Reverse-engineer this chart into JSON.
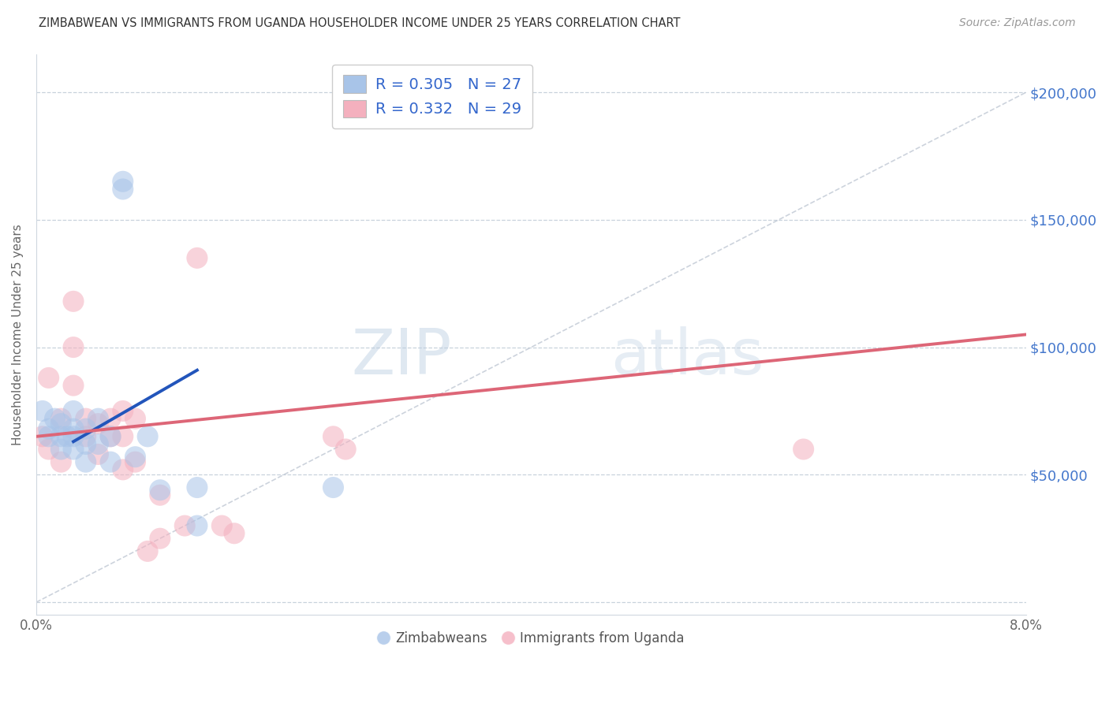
{
  "title": "ZIMBABWEAN VS IMMIGRANTS FROM UGANDA HOUSEHOLDER INCOME UNDER 25 YEARS CORRELATION CHART",
  "source": "Source: ZipAtlas.com",
  "ylabel": "Householder Income Under 25 years",
  "xlim": [
    0.0,
    0.08
  ],
  "ylim": [
    -5000,
    215000
  ],
  "xticks": [
    0.0,
    0.01,
    0.02,
    0.03,
    0.04,
    0.05,
    0.06,
    0.07,
    0.08
  ],
  "xticklabels": [
    "0.0%",
    "",
    "",
    "",
    "",
    "",
    "",
    "",
    "8.0%"
  ],
  "ytick_values": [
    0,
    50000,
    100000,
    150000,
    200000
  ],
  "ytick_labels": [
    "",
    "$50,000",
    "$100,000",
    "$150,000",
    "$200,000"
  ],
  "legend_label1": "R = 0.305   N = 27",
  "legend_label2": "R = 0.332   N = 29",
  "legend_bottom1": "Zimbabweans",
  "legend_bottom2": "Immigrants from Uganda",
  "color_blue": "#a8c4e8",
  "color_pink": "#f4b0be",
  "color_blue_line": "#2255bb",
  "color_pink_line": "#dd6677",
  "color_diagonal": "#c0c8d4",
  "watermark_zip": "ZIP",
  "watermark_atlas": "atlas",
  "blue_line_x": [
    0.003,
    0.013
  ],
  "blue_line_y": [
    63000,
    91000
  ],
  "pink_line_x": [
    0.0,
    0.08
  ],
  "pink_line_y": [
    65000,
    105000
  ],
  "zimbabweans_x": [
    0.0005,
    0.001,
    0.001,
    0.0015,
    0.002,
    0.002,
    0.002,
    0.0025,
    0.003,
    0.003,
    0.003,
    0.003,
    0.004,
    0.004,
    0.004,
    0.005,
    0.005,
    0.006,
    0.006,
    0.007,
    0.007,
    0.008,
    0.009,
    0.01,
    0.013,
    0.013,
    0.024
  ],
  "zimbabweans_y": [
    75000,
    68000,
    65000,
    72000,
    70000,
    65000,
    60000,
    65000,
    75000,
    68000,
    65000,
    60000,
    68000,
    62000,
    55000,
    72000,
    62000,
    65000,
    55000,
    162000,
    165000,
    57000,
    65000,
    44000,
    45000,
    30000,
    45000
  ],
  "uganda_x": [
    0.0005,
    0.001,
    0.001,
    0.002,
    0.002,
    0.003,
    0.003,
    0.003,
    0.004,
    0.004,
    0.005,
    0.005,
    0.006,
    0.006,
    0.007,
    0.007,
    0.007,
    0.008,
    0.008,
    0.009,
    0.01,
    0.01,
    0.012,
    0.013,
    0.015,
    0.016,
    0.024,
    0.025,
    0.062
  ],
  "uganda_y": [
    65000,
    88000,
    60000,
    72000,
    55000,
    118000,
    100000,
    85000,
    72000,
    65000,
    70000,
    58000,
    72000,
    65000,
    75000,
    65000,
    52000,
    72000,
    55000,
    20000,
    25000,
    42000,
    30000,
    135000,
    30000,
    27000,
    65000,
    60000,
    60000
  ]
}
